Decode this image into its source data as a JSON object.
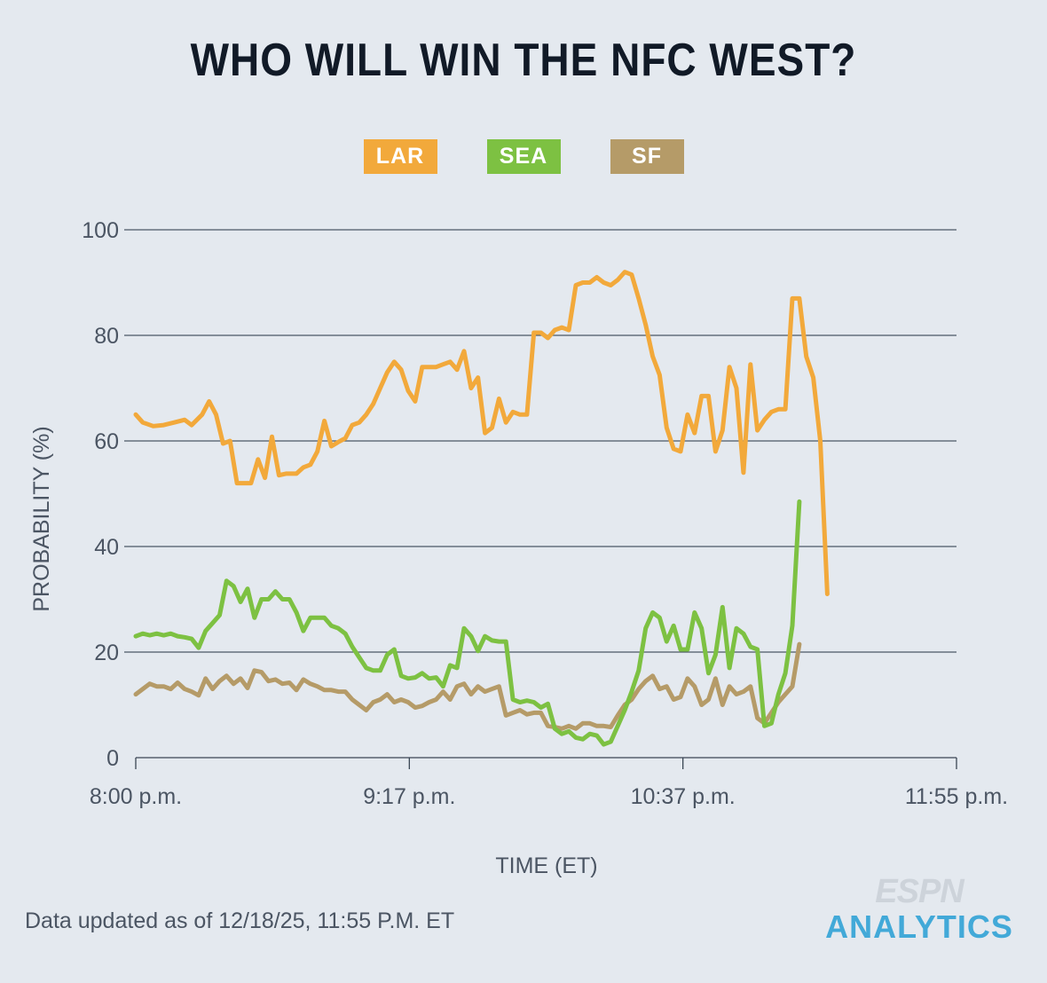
{
  "title": "WHO WILL WIN THE NFC WEST?",
  "legend": [
    {
      "label": "LAR",
      "color": "#f2a93b"
    },
    {
      "label": "SEA",
      "color": "#7dc142"
    },
    {
      "label": "SF",
      "color": "#b59b68"
    }
  ],
  "footer_note": "Data updated as of 12/18/25, 11:55 P.M. ET",
  "brand": {
    "top": "ESPN",
    "bottom": "ANALYTICS"
  },
  "chart_data": {
    "type": "line",
    "xlabel": "TIME (ET)",
    "ylabel": "PROBABILITY (%)",
    "ylim": [
      0,
      100
    ],
    "y_ticks": [
      0,
      20,
      40,
      60,
      80,
      100
    ],
    "x_tick_labels": [
      "8:00 p.m.",
      "9:17 p.m.",
      "10:37 p.m.",
      "11:55 p.m."
    ],
    "x_domain_minutes": [
      0,
      235
    ],
    "grid": "horizontal",
    "series": [
      {
        "name": "LAR",
        "color": "#f2a93b",
        "points": [
          [
            0,
            65
          ],
          [
            2,
            63.5
          ],
          [
            5,
            62.8
          ],
          [
            8,
            63
          ],
          [
            11,
            63.5
          ],
          [
            14,
            64
          ],
          [
            16,
            63
          ],
          [
            19,
            65
          ],
          [
            21,
            67.5
          ],
          [
            23,
            65
          ],
          [
            25,
            59.5
          ],
          [
            27,
            60
          ],
          [
            29,
            52
          ],
          [
            31,
            52
          ],
          [
            33,
            52
          ],
          [
            35,
            56.5
          ],
          [
            37,
            53
          ],
          [
            39,
            60.8
          ],
          [
            41,
            53.5
          ],
          [
            43,
            53.8
          ],
          [
            46,
            53.8
          ],
          [
            48,
            55
          ],
          [
            50,
            55.5
          ],
          [
            52,
            58
          ],
          [
            54,
            63.8
          ],
          [
            56,
            59
          ],
          [
            58,
            59.8
          ],
          [
            60,
            60.5
          ],
          [
            62,
            63
          ],
          [
            64,
            63.5
          ],
          [
            66,
            65
          ],
          [
            68,
            67
          ],
          [
            70,
            70
          ],
          [
            72,
            73
          ],
          [
            74,
            75
          ],
          [
            76,
            73.5
          ],
          [
            78,
            69.5
          ],
          [
            80,
            67.5
          ],
          [
            82,
            74
          ],
          [
            84,
            74
          ],
          [
            86,
            74
          ],
          [
            88,
            74.5
          ],
          [
            90,
            75
          ],
          [
            92,
            73.5
          ],
          [
            94,
            77
          ],
          [
            96,
            70
          ],
          [
            98,
            72
          ],
          [
            100,
            61.5
          ],
          [
            102,
            62.5
          ],
          [
            104,
            68
          ],
          [
            106,
            63.5
          ],
          [
            108,
            65.5
          ],
          [
            110,
            65
          ],
          [
            112,
            65
          ],
          [
            114,
            80.5
          ],
          [
            116,
            80.5
          ],
          [
            118,
            79.5
          ],
          [
            120,
            81
          ],
          [
            122,
            81.5
          ],
          [
            124,
            81
          ],
          [
            126,
            89.5
          ],
          [
            128,
            90
          ],
          [
            130,
            90
          ],
          [
            132,
            91
          ],
          [
            134,
            90
          ],
          [
            136,
            89.5
          ],
          [
            138,
            90.5
          ],
          [
            140,
            92
          ],
          [
            142,
            91.5
          ],
          [
            144,
            87
          ],
          [
            146,
            82
          ],
          [
            148,
            76
          ],
          [
            150,
            72.5
          ],
          [
            152,
            62.5
          ],
          [
            154,
            58.5
          ],
          [
            156,
            58
          ],
          [
            158,
            65
          ],
          [
            160,
            61.5
          ],
          [
            162,
            68.5
          ],
          [
            164,
            68.5
          ],
          [
            166,
            58
          ],
          [
            168,
            62
          ],
          [
            170,
            74
          ],
          [
            172,
            70
          ],
          [
            174,
            54
          ],
          [
            176,
            74.5
          ],
          [
            178,
            62
          ],
          [
            180,
            64
          ],
          [
            182,
            65.5
          ],
          [
            184,
            66
          ],
          [
            186,
            66
          ],
          [
            188,
            87
          ],
          [
            190,
            87
          ],
          [
            192,
            76
          ],
          [
            194,
            72
          ],
          [
            196,
            60
          ],
          [
            198,
            31
          ]
        ]
      },
      {
        "name": "SEA",
        "color": "#7dc142",
        "points": [
          [
            0,
            23
          ],
          [
            2,
            23.5
          ],
          [
            4,
            23.2
          ],
          [
            6,
            23.5
          ],
          [
            8,
            23.2
          ],
          [
            10,
            23.5
          ],
          [
            12,
            23
          ],
          [
            14,
            22.8
          ],
          [
            16,
            22.5
          ],
          [
            18,
            20.8
          ],
          [
            20,
            24
          ],
          [
            22,
            25.5
          ],
          [
            24,
            27
          ],
          [
            26,
            33.5
          ],
          [
            28,
            32.5
          ],
          [
            30,
            29.5
          ],
          [
            32,
            32
          ],
          [
            34,
            26.5
          ],
          [
            36,
            30
          ],
          [
            38,
            30
          ],
          [
            40,
            31.5
          ],
          [
            42,
            30
          ],
          [
            44,
            30
          ],
          [
            46,
            27.5
          ],
          [
            48,
            24
          ],
          [
            50,
            26.5
          ],
          [
            52,
            26.5
          ],
          [
            54,
            26.5
          ],
          [
            56,
            25
          ],
          [
            58,
            24.5
          ],
          [
            60,
            23.5
          ],
          [
            62,
            21
          ],
          [
            64,
            19
          ],
          [
            66,
            17
          ],
          [
            68,
            16.5
          ],
          [
            70,
            16.5
          ],
          [
            72,
            19.5
          ],
          [
            74,
            20.5
          ],
          [
            76,
            15.5
          ],
          [
            78,
            15
          ],
          [
            80,
            15.2
          ],
          [
            82,
            16
          ],
          [
            84,
            15
          ],
          [
            86,
            15.2
          ],
          [
            88,
            13.5
          ],
          [
            90,
            17.5
          ],
          [
            92,
            17
          ],
          [
            94,
            24.5
          ],
          [
            96,
            23
          ],
          [
            98,
            20.2
          ],
          [
            100,
            23
          ],
          [
            102,
            22.2
          ],
          [
            104,
            22
          ],
          [
            106,
            22
          ],
          [
            108,
            11
          ],
          [
            110,
            10.5
          ],
          [
            112,
            10.8
          ],
          [
            114,
            10.5
          ],
          [
            116,
            9.5
          ],
          [
            118,
            10.2
          ],
          [
            120,
            5.5
          ],
          [
            122,
            4.5
          ],
          [
            124,
            5
          ],
          [
            126,
            3.8
          ],
          [
            128,
            3.5
          ],
          [
            130,
            4.5
          ],
          [
            132,
            4.2
          ],
          [
            134,
            2.5
          ],
          [
            136,
            3
          ],
          [
            138,
            6
          ],
          [
            140,
            9
          ],
          [
            142,
            12.5
          ],
          [
            144,
            16.5
          ],
          [
            146,
            24.5
          ],
          [
            148,
            27.5
          ],
          [
            150,
            26.5
          ],
          [
            152,
            22
          ],
          [
            154,
            25
          ],
          [
            156,
            20.5
          ],
          [
            158,
            20.5
          ],
          [
            160,
            27.5
          ],
          [
            162,
            24.5
          ],
          [
            164,
            16
          ],
          [
            166,
            19.5
          ],
          [
            168,
            28.5
          ],
          [
            170,
            17
          ],
          [
            172,
            24.5
          ],
          [
            174,
            23.5
          ],
          [
            176,
            21
          ],
          [
            178,
            20.5
          ],
          [
            180,
            6
          ],
          [
            182,
            6.5
          ],
          [
            184,
            12
          ],
          [
            186,
            16
          ],
          [
            188,
            25
          ],
          [
            190,
            48.5
          ]
        ]
      },
      {
        "name": "SF",
        "color": "#b59b68",
        "points": [
          [
            0,
            12
          ],
          [
            2,
            13
          ],
          [
            4,
            14
          ],
          [
            6,
            13.5
          ],
          [
            8,
            13.5
          ],
          [
            10,
            13
          ],
          [
            12,
            14.2
          ],
          [
            14,
            13
          ],
          [
            16,
            12.5
          ],
          [
            18,
            11.8
          ],
          [
            20,
            15
          ],
          [
            22,
            13
          ],
          [
            24,
            14.5
          ],
          [
            26,
            15.5
          ],
          [
            28,
            14
          ],
          [
            30,
            15
          ],
          [
            32,
            13.2
          ],
          [
            34,
            16.5
          ],
          [
            36,
            16.2
          ],
          [
            38,
            14.5
          ],
          [
            40,
            14.8
          ],
          [
            42,
            14
          ],
          [
            44,
            14.2
          ],
          [
            46,
            12.8
          ],
          [
            48,
            14.8
          ],
          [
            50,
            14
          ],
          [
            52,
            13.5
          ],
          [
            54,
            12.8
          ],
          [
            56,
            12.8
          ],
          [
            58,
            12.5
          ],
          [
            60,
            12.5
          ],
          [
            62,
            11
          ],
          [
            64,
            10
          ],
          [
            66,
            9
          ],
          [
            68,
            10.5
          ],
          [
            70,
            11
          ],
          [
            72,
            12
          ],
          [
            74,
            10.5
          ],
          [
            76,
            11
          ],
          [
            78,
            10.5
          ],
          [
            80,
            9.5
          ],
          [
            82,
            9.8
          ],
          [
            84,
            10.5
          ],
          [
            86,
            11
          ],
          [
            88,
            12.5
          ],
          [
            90,
            11
          ],
          [
            92,
            13.5
          ],
          [
            94,
            14
          ],
          [
            96,
            12
          ],
          [
            98,
            13.5
          ],
          [
            100,
            12.5
          ],
          [
            102,
            13
          ],
          [
            104,
            13.5
          ],
          [
            106,
            8
          ],
          [
            108,
            8.5
          ],
          [
            110,
            9
          ],
          [
            112,
            8.2
          ],
          [
            114,
            8.5
          ],
          [
            116,
            8.5
          ],
          [
            118,
            6
          ],
          [
            120,
            5.8
          ],
          [
            122,
            5.5
          ],
          [
            124,
            6
          ],
          [
            126,
            5.5
          ],
          [
            128,
            6.5
          ],
          [
            130,
            6.5
          ],
          [
            132,
            6
          ],
          [
            134,
            6
          ],
          [
            136,
            5.8
          ],
          [
            138,
            8
          ],
          [
            140,
            10
          ],
          [
            142,
            11
          ],
          [
            144,
            13
          ],
          [
            146,
            14.5
          ],
          [
            148,
            15.5
          ],
          [
            150,
            13
          ],
          [
            152,
            13.5
          ],
          [
            154,
            11
          ],
          [
            156,
            11.5
          ],
          [
            158,
            15
          ],
          [
            160,
            13.5
          ],
          [
            162,
            10
          ],
          [
            164,
            11
          ],
          [
            166,
            15
          ],
          [
            168,
            10
          ],
          [
            170,
            13.5
          ],
          [
            172,
            12
          ],
          [
            174,
            12.5
          ],
          [
            176,
            13.5
          ],
          [
            178,
            7.5
          ],
          [
            180,
            6.5
          ],
          [
            182,
            8.5
          ],
          [
            184,
            10.5
          ],
          [
            186,
            12
          ],
          [
            188,
            13.5
          ],
          [
            190,
            21.5
          ]
        ]
      }
    ]
  }
}
